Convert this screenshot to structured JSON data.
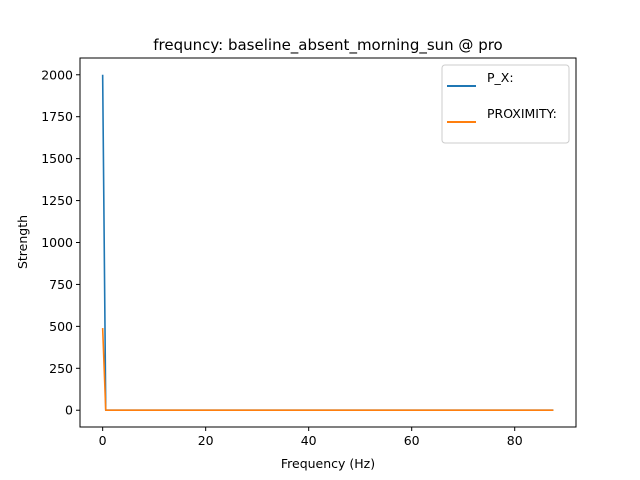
{
  "chart_data": {
    "type": "line",
    "title": "frequncy: baseline_absent_morning_sun @ pro",
    "xlabel": "Frequency (Hz)",
    "ylabel": "Strength",
    "xlim": [
      -4.4,
      91.9
    ],
    "ylim": [
      -100,
      2100
    ],
    "xticks": [
      0,
      20,
      40,
      60,
      80
    ],
    "yticks": [
      0,
      250,
      500,
      750,
      1000,
      1250,
      1500,
      1750,
      2000
    ],
    "grid": false,
    "legend_position": "top-right",
    "series": [
      {
        "name": "P_X:",
        "color": "#1f77b4",
        "x": [
          0,
          0.6,
          1,
          2,
          5,
          10,
          20,
          40,
          60,
          80,
          87.5
        ],
        "y": [
          2000,
          0,
          0,
          0,
          0,
          0,
          0,
          0,
          0,
          0,
          0
        ]
      },
      {
        "name": "PROXIMITY:",
        "color": "#ff7f0e",
        "x": [
          0,
          0.6,
          1,
          2,
          5,
          10,
          20,
          40,
          60,
          80,
          87.5
        ],
        "y": [
          490,
          0,
          0,
          0,
          0,
          0,
          0,
          0,
          0,
          0,
          0
        ]
      }
    ]
  }
}
